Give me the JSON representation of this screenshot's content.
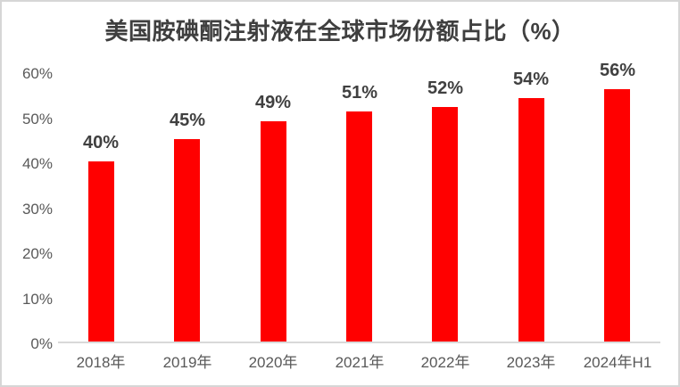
{
  "chart_data": {
    "type": "bar",
    "title": "美国胺碘酮注射液在全球市场份额占比（%）",
    "categories": [
      "2018年",
      "2019年",
      "2020年",
      "2021年",
      "2022年",
      "2023年",
      "2024年H1"
    ],
    "values": [
      40,
      45,
      49,
      51,
      52,
      54,
      56
    ],
    "data_labels": [
      "40%",
      "45%",
      "49%",
      "51%",
      "52%",
      "54%",
      "56%"
    ],
    "ytick_values": [
      0,
      10,
      20,
      30,
      40,
      50,
      60
    ],
    "ytick_labels": [
      "0%",
      "10%",
      "20%",
      "30%",
      "40%",
      "50%",
      "60%"
    ],
    "ylim": [
      0,
      60
    ],
    "xlabel": "",
    "ylabel": "",
    "legend": "none",
    "grid": "off",
    "colors": {
      "bar": "#ff0000",
      "title": "#3f3f3f",
      "value_label": "#404040",
      "axis_label": "#595959",
      "axis_line": "#d9d9d9"
    }
  }
}
